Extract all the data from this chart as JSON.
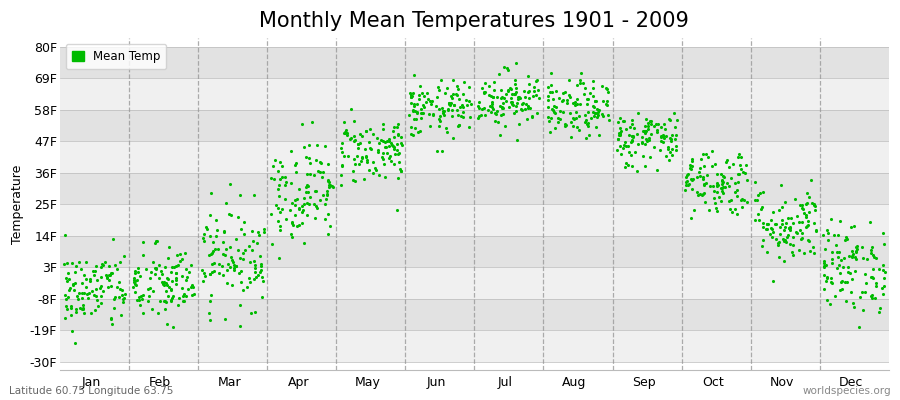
{
  "title": "Monthly Mean Temperatures 1901 - 2009",
  "ylabel": "Temperature",
  "xlabel_bottom_left": "Latitude 60.75 Longitude 63.75",
  "xlabel_bottom_right": "worldspecies.org",
  "legend_label": "Mean Temp",
  "yticks": [
    -30,
    -19,
    -8,
    3,
    14,
    25,
    36,
    47,
    58,
    69,
    80
  ],
  "ytick_labels": [
    "-30F",
    "-19F",
    "-8F",
    "3F",
    "14F",
    "25F",
    "36F",
    "47F",
    "58F",
    "69F",
    "80F"
  ],
  "ylim": [
    -33,
    83
  ],
  "months": [
    "Jan",
    "Feb",
    "Mar",
    "Apr",
    "May",
    "Jun",
    "Jul",
    "Aug",
    "Sep",
    "Oct",
    "Nov",
    "Dec"
  ],
  "dot_color": "#00BB00",
  "fig_bg_color": "#FFFFFF",
  "plot_bg_color": "#FFFFFF",
  "band_colors_light": "#F0F0F0",
  "band_colors_dark": "#E2E2E2",
  "title_fontsize": 15,
  "axis_label_fontsize": 9,
  "tick_fontsize": 9,
  "monthly_means": [
    -5,
    -3,
    7,
    30,
    44,
    58,
    62,
    58,
    48,
    33,
    18,
    3
  ],
  "monthly_stds": [
    7,
    7,
    9,
    9,
    6,
    5,
    5,
    5,
    5,
    6,
    7,
    8
  ],
  "n_years": 109,
  "seed": 42
}
